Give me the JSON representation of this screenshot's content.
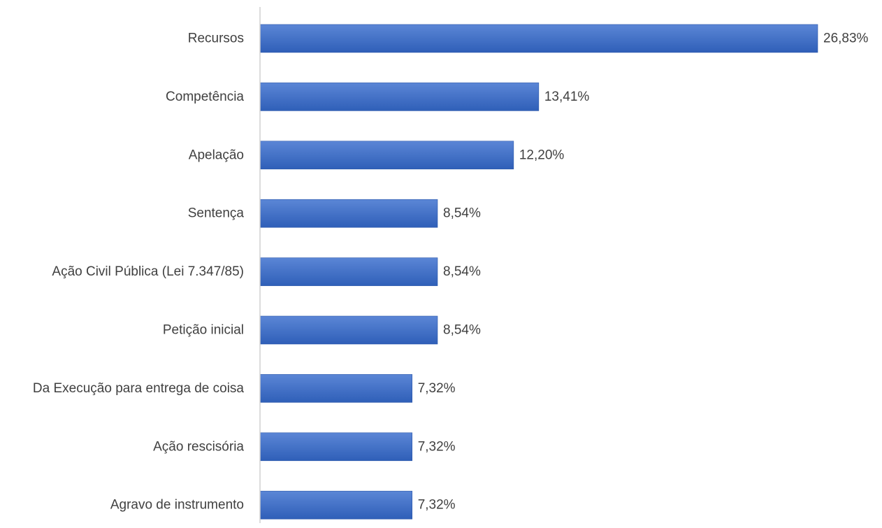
{
  "chart_data": {
    "type": "bar",
    "orientation": "horizontal",
    "title": "",
    "xlabel": "",
    "ylabel": "",
    "categories": [
      "Recursos",
      "Competência",
      "Apelação",
      "Sentença",
      "Ação Civil Pública (Lei 7.347/85)",
      "Petição inicial",
      "Da Execução para entrega de coisa",
      "Ação rescisória",
      "Agravo de instrumento"
    ],
    "values": [
      26.83,
      13.41,
      12.2,
      8.54,
      8.54,
      8.54,
      7.32,
      7.32,
      7.32
    ],
    "value_labels": [
      "26,83%",
      "13,41%",
      "12,20%",
      "8,54%",
      "8,54%",
      "8,54%",
      "7,32%",
      "7,32%",
      "7,32%"
    ],
    "xlim": [
      0,
      26.83
    ],
    "grid": false,
    "legend": "none",
    "colors": {
      "bar_top": "#5b86d6",
      "bar_bottom": "#2f5fb8",
      "bar_edge": "#2a56a8",
      "axis": "#d0d0d0",
      "text": "#404040"
    }
  }
}
